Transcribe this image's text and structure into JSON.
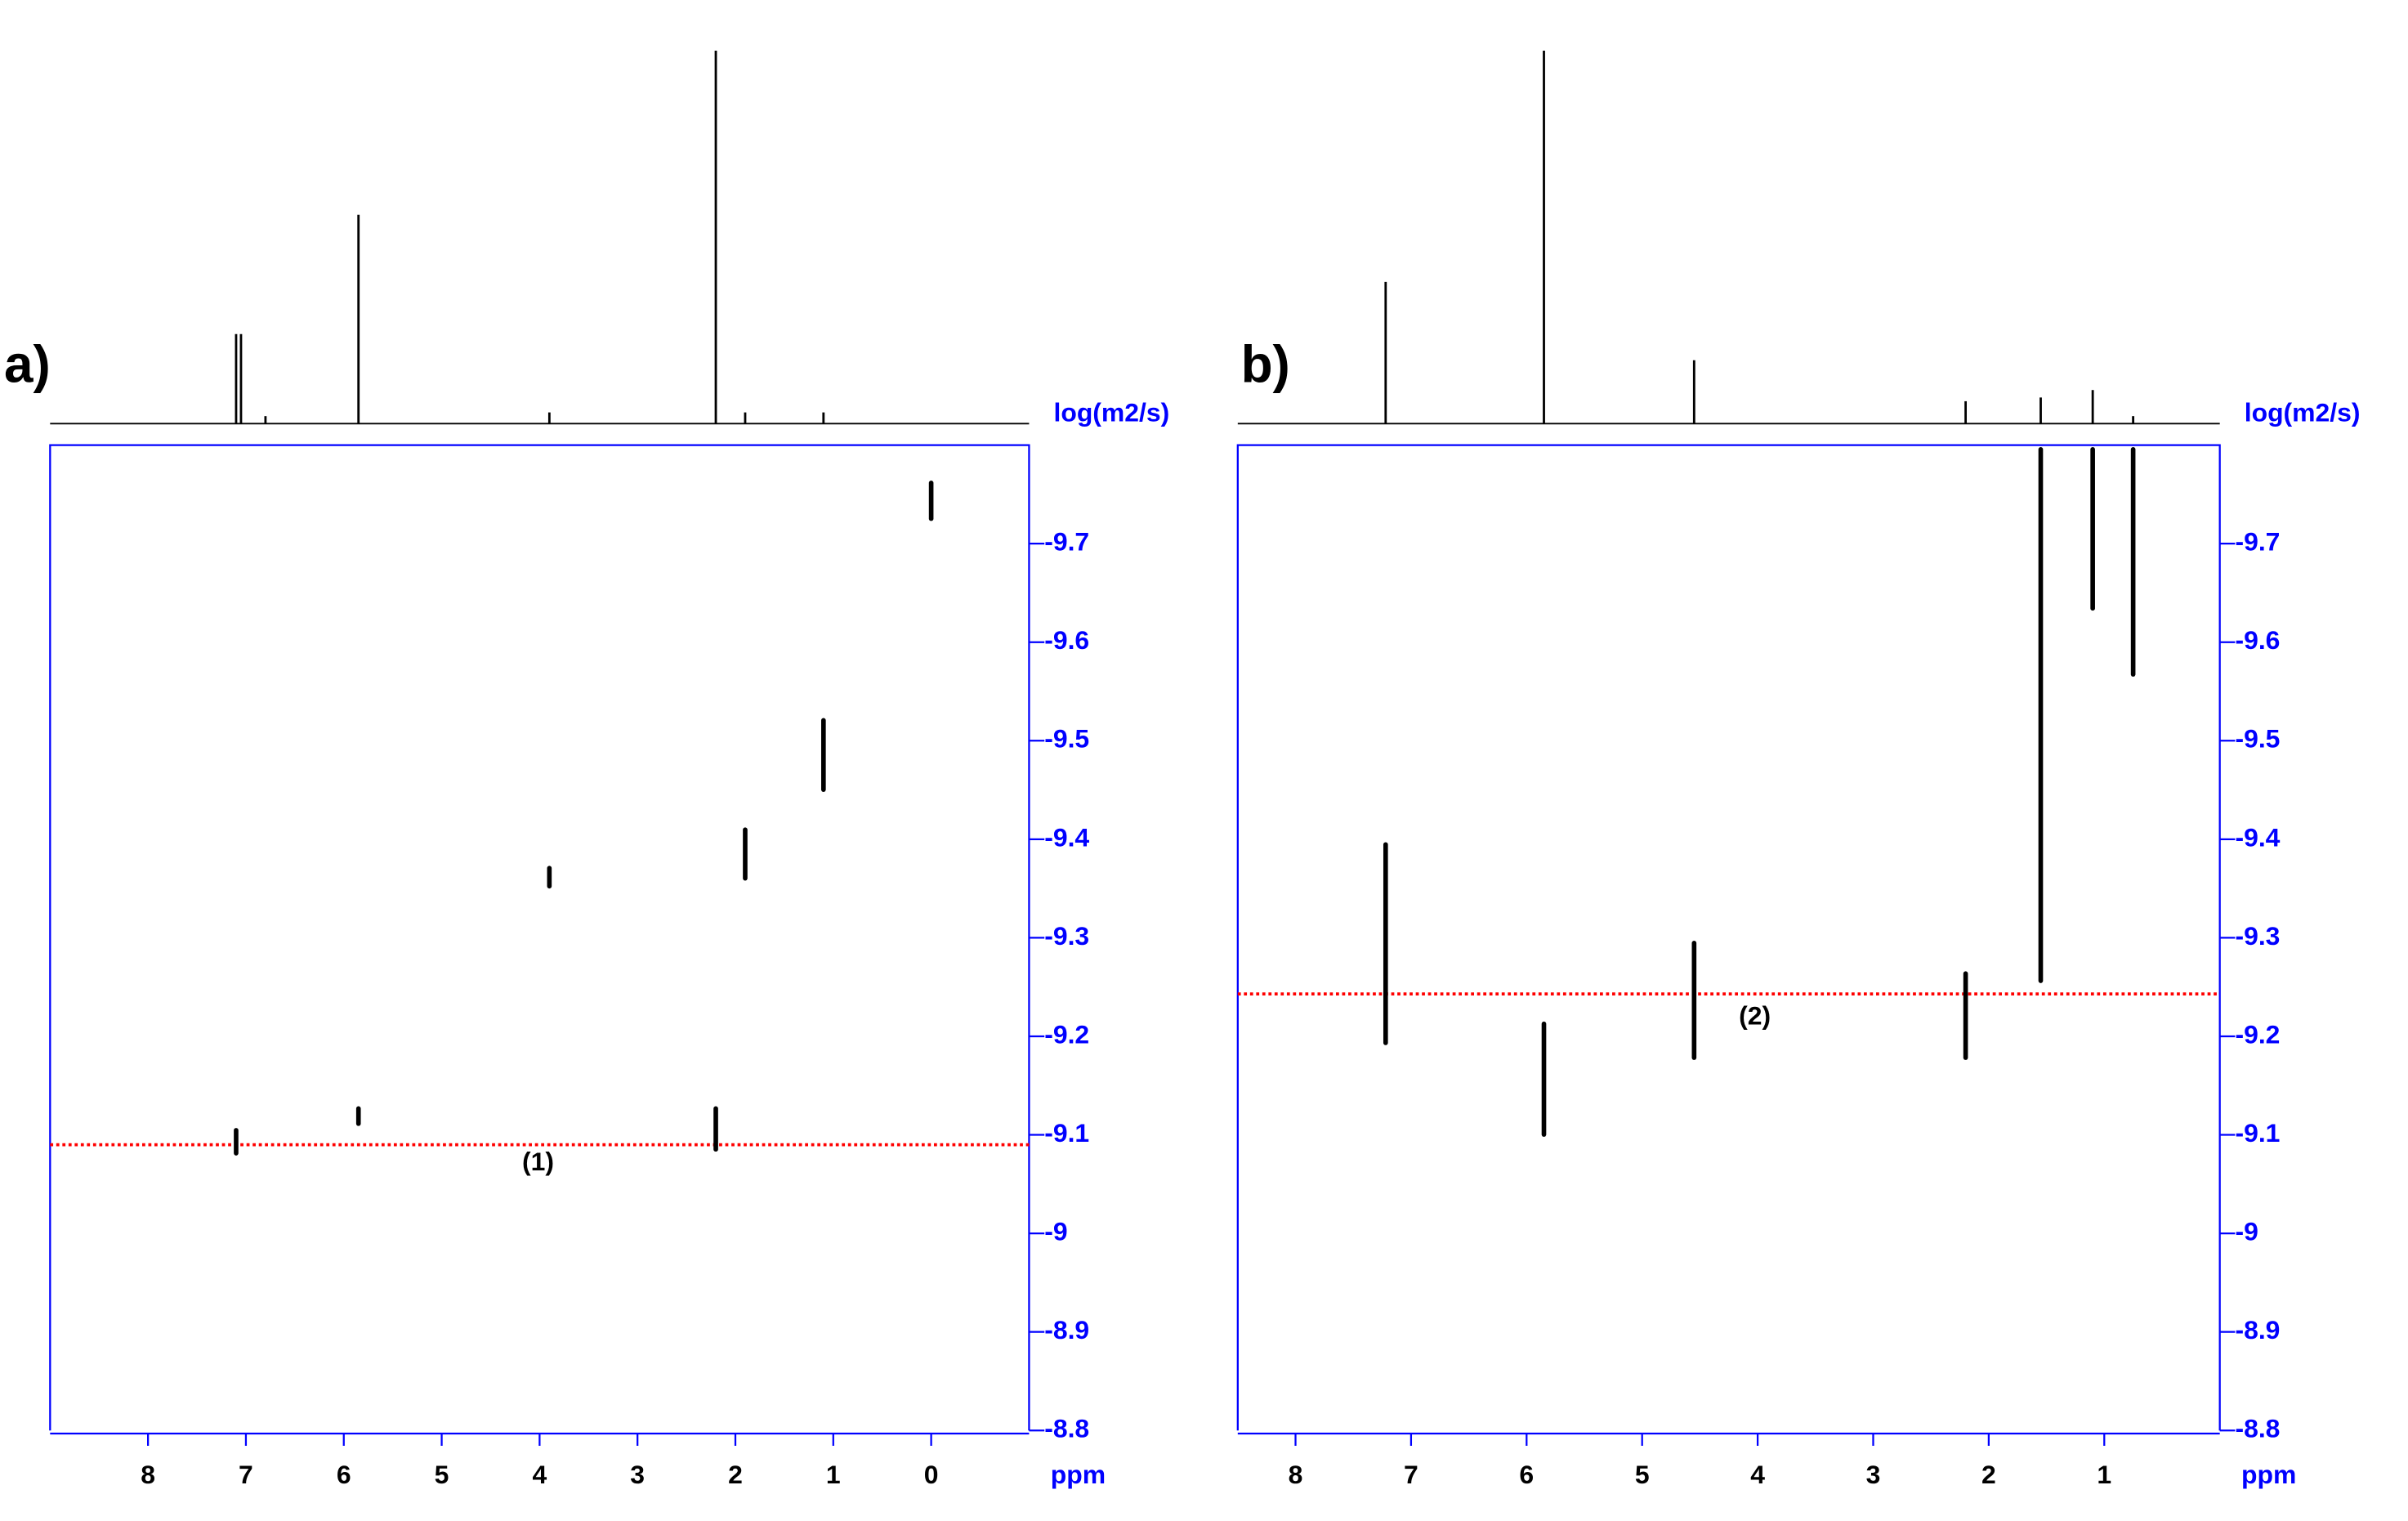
{
  "chart_data": [
    {
      "type": "dosy",
      "panel_label": "a)",
      "y_label": "log(m2/s)",
      "x_label": "ppm",
      "annotation": "(1)",
      "xlim": [
        9,
        -1
      ],
      "xticks": [
        8,
        7,
        6,
        5,
        4,
        3,
        2,
        1,
        0
      ],
      "ylim": [
        -8.8,
        -9.8
      ],
      "yticks": [
        -9.7,
        -9.6,
        -9.5,
        -9.4,
        -9.3,
        -9.2,
        -9.1,
        -9.0,
        -8.9,
        -8.8
      ],
      "reference_line": -9.09,
      "reference_color": "#ff0000",
      "axis_color": "#0000ff",
      "spectrum": {
        "x": [
          7.1,
          7.05,
          6.8,
          5.85,
          3.9,
          2.2,
          1.9,
          1.1
        ],
        "values": [
          0.24,
          0.24,
          0.02,
          0.56,
          0.03,
          1.0,
          0.03,
          0.03
        ]
      },
      "cross_peaks": {
        "x": [
          7.1,
          5.85,
          2.2,
          3.9,
          1.9,
          1.1,
          0.0
        ],
        "y_from": [
          -9.107,
          -9.129,
          -9.129,
          -9.373,
          -9.412,
          -9.523,
          -9.764
        ],
        "y_to": [
          -9.079,
          -9.109,
          -9.083,
          -9.35,
          -9.358,
          -9.448,
          -9.723
        ]
      }
    },
    {
      "type": "dosy",
      "panel_label": "b)",
      "y_label": "log(m2/s)",
      "x_label": "ppm",
      "annotation": "(2)",
      "xlim": [
        8.5,
        0
      ],
      "xticks": [
        8,
        7,
        6,
        5,
        4,
        3,
        2,
        1
      ],
      "ylim": [
        -8.8,
        -9.8
      ],
      "yticks": [
        -9.7,
        -9.6,
        -9.5,
        -9.4,
        -9.3,
        -9.2,
        -9.1,
        -9.0,
        -8.9,
        -8.8
      ],
      "reference_line": -9.243,
      "reference_color": "#ff0000",
      "axis_color": "#0000ff",
      "spectrum": {
        "x": [
          7.22,
          5.85,
          4.55,
          2.2,
          1.55,
          1.1,
          0.75
        ],
        "values": [
          0.38,
          1.0,
          0.17,
          0.06,
          0.07,
          0.09,
          0.02
        ]
      },
      "cross_peaks": {
        "x": [
          7.22,
          5.85,
          4.55,
          2.2,
          1.55,
          1.1,
          0.75
        ],
        "y_from": [
          -9.397,
          -9.215,
          -9.297,
          -9.266,
          -9.798,
          -9.798,
          -9.798
        ],
        "y_to": [
          -9.191,
          -9.098,
          -9.176,
          -9.176,
          -9.254,
          -9.632,
          -9.565
        ]
      }
    }
  ]
}
